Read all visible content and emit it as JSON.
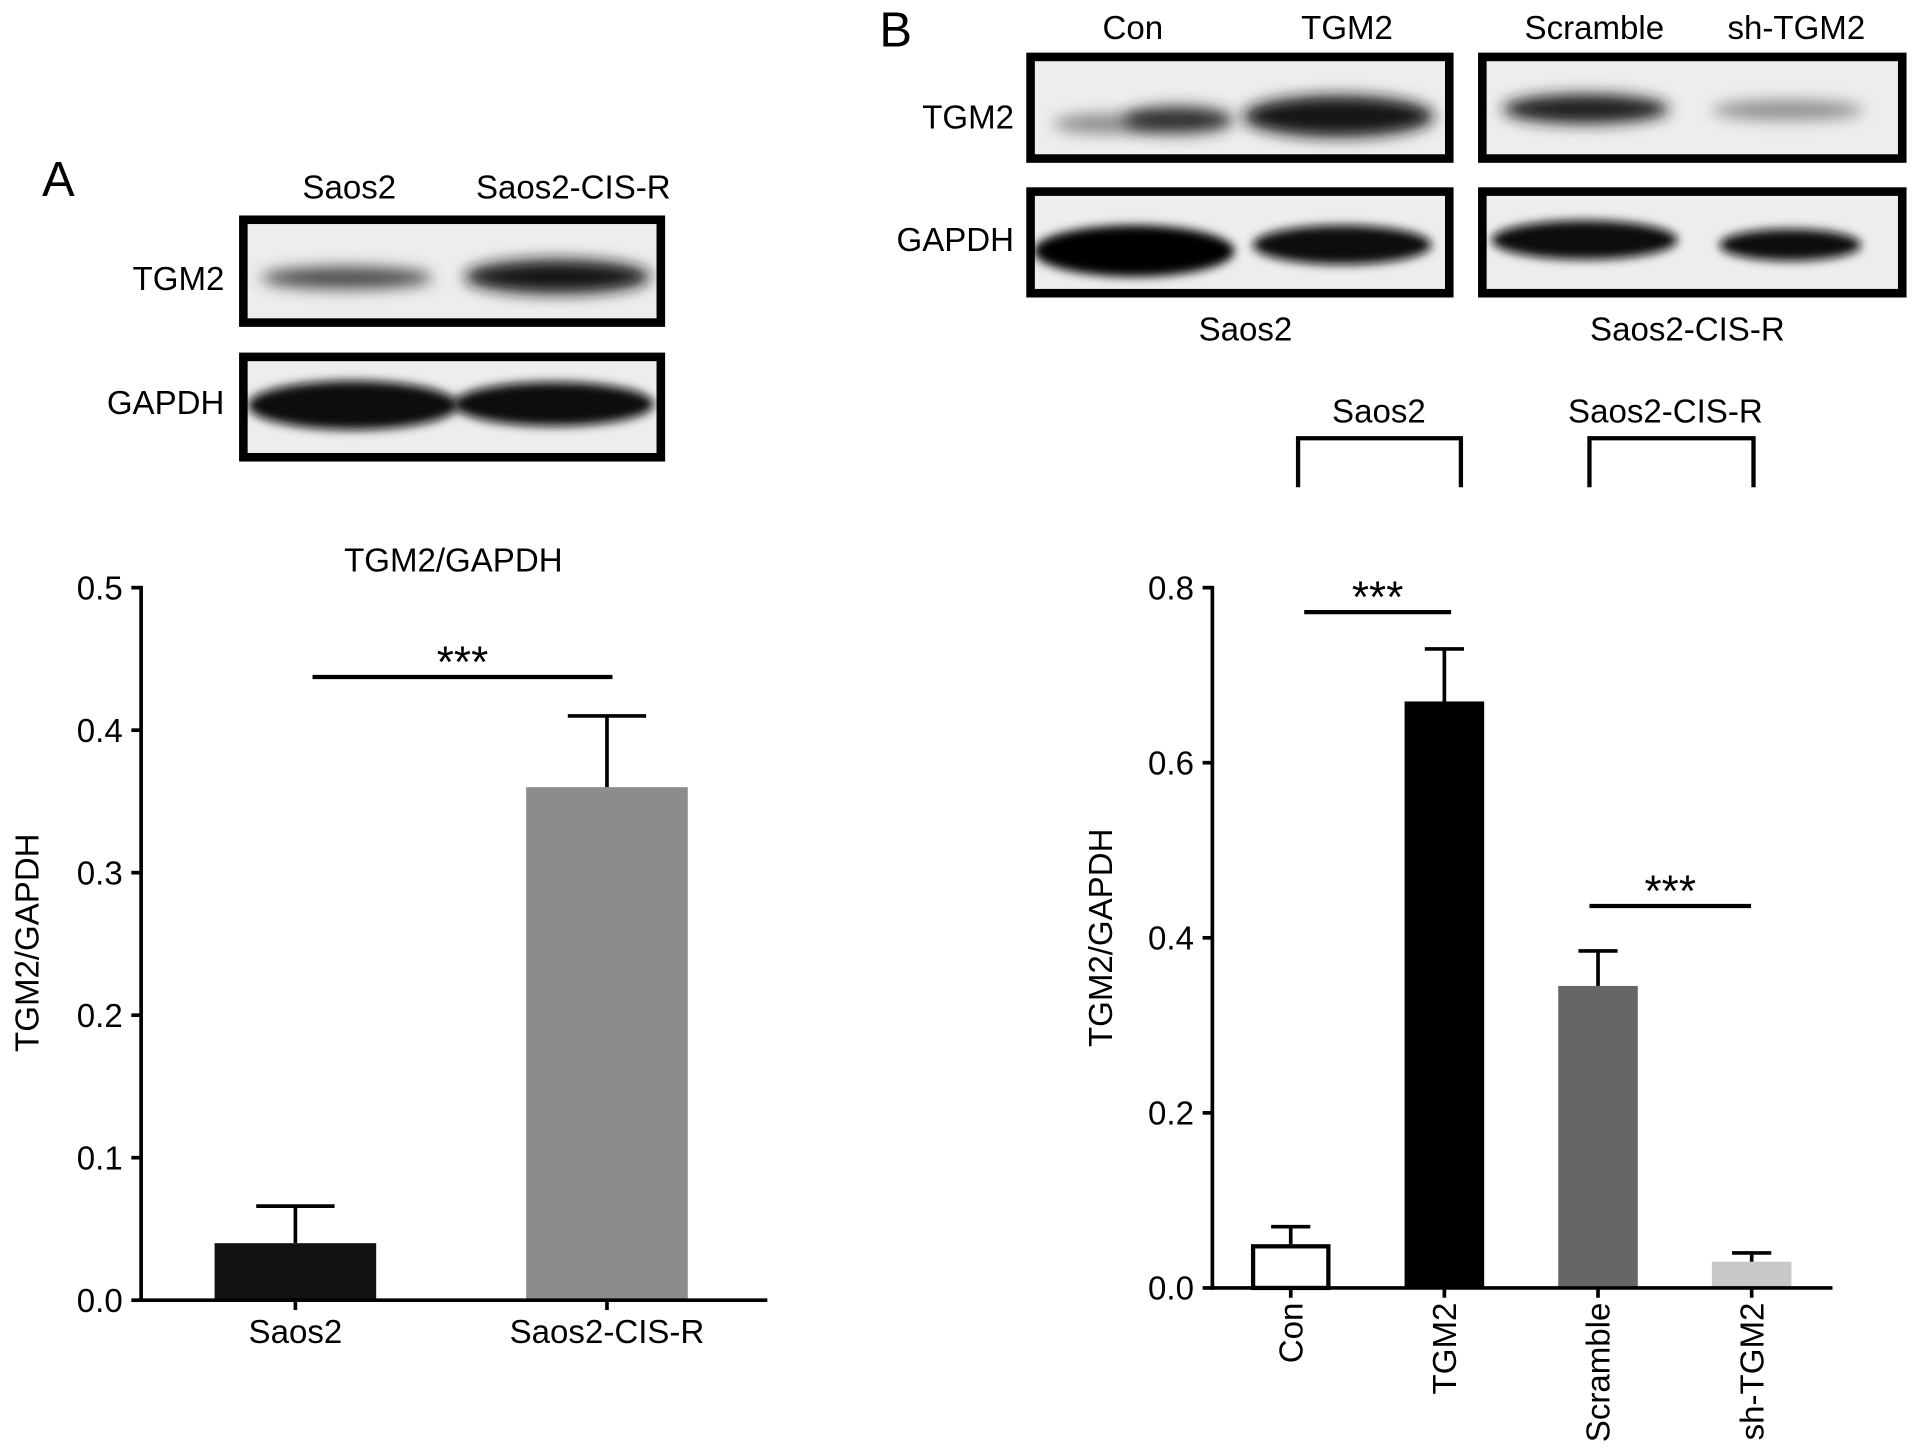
{
  "panels": {
    "a": {
      "label": "A",
      "blot": {
        "lanes": [
          "Saos2",
          "Saos2-CIS-R"
        ],
        "rows": [
          "TGM2",
          "GAPDH"
        ]
      }
    },
    "b": {
      "label": "B",
      "blot": {
        "lanes": [
          "Con",
          "TGM2",
          "Scramble",
          "sh-TGM2"
        ],
        "rows": [
          "TGM2",
          "GAPDH"
        ],
        "cell_lines": [
          "Saos2",
          "Saos2-CIS-R"
        ]
      }
    }
  },
  "chart_data": [
    {
      "type": "bar",
      "title": "TGM2/GAPDH",
      "ylabel": "TGM2/GAPDH",
      "categories": [
        "Saos2",
        "Saos2-CIS-R"
      ],
      "values": [
        0.04,
        0.36
      ],
      "errors": [
        0.026,
        0.05
      ],
      "colors": [
        "#111111",
        "#8c8c8c"
      ],
      "ylim": [
        0,
        0.5
      ],
      "yticks": [
        "0.0",
        "0.1",
        "0.2",
        "0.3",
        "0.4",
        "0.5"
      ],
      "grid": false,
      "significance": [
        {
          "between": [
            0,
            1
          ],
          "label": "***"
        }
      ]
    },
    {
      "type": "bar",
      "ylabel": "TGM2/GAPDH",
      "categories": [
        "Con",
        "TGM2",
        "Scramble",
        "sh-TGM2"
      ],
      "values": [
        0.05,
        0.67,
        0.345,
        0.03
      ],
      "errors": [
        0.02,
        0.06,
        0.04,
        0.01
      ],
      "colors": [
        "#ffffff",
        "#000000",
        "#666666",
        "#c8c8c8"
      ],
      "ylim": [
        0,
        0.8
      ],
      "yticks": [
        "0.0",
        "0.2",
        "0.4",
        "0.6",
        "0.8"
      ],
      "grid": false,
      "groups": [
        {
          "label": "Saos2",
          "categories": [
            0,
            1
          ]
        },
        {
          "label": "Saos2-CIS-R",
          "categories": [
            2,
            3
          ]
        }
      ],
      "significance": [
        {
          "between": [
            0,
            1
          ],
          "label": "***"
        },
        {
          "between": [
            2,
            3
          ],
          "label": "***"
        }
      ]
    }
  ]
}
